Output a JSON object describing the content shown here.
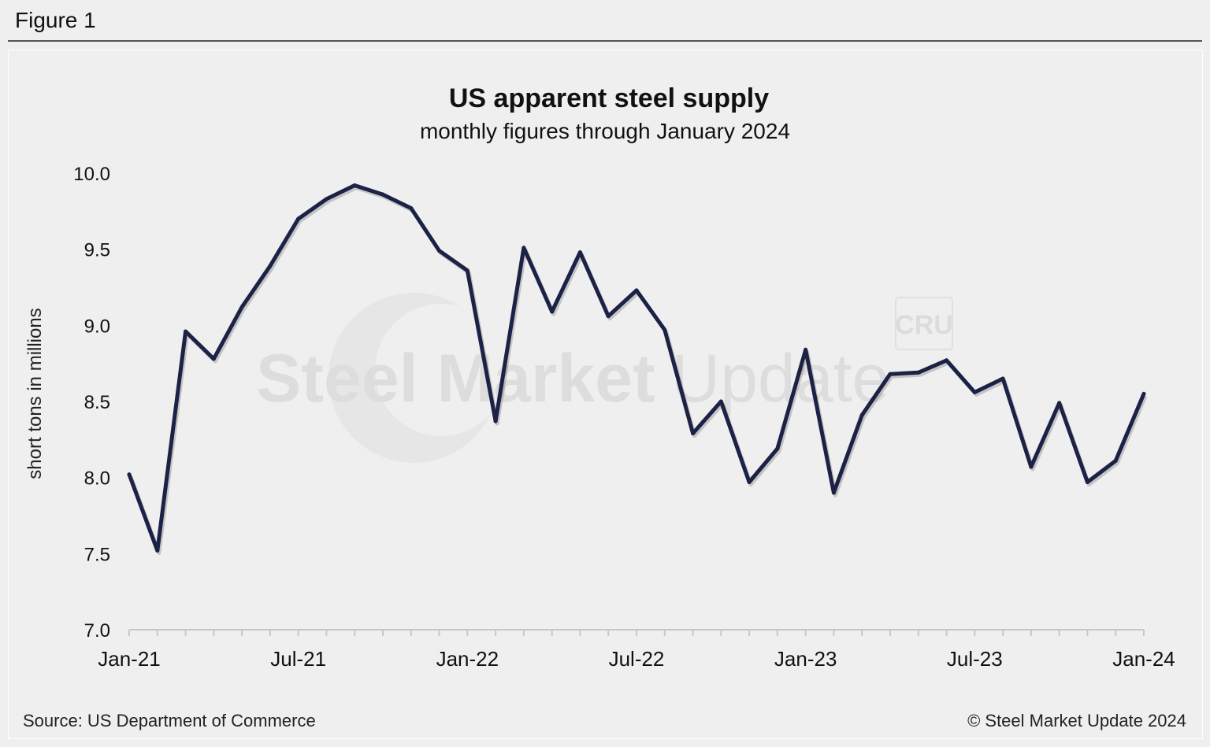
{
  "figure_label": "Figure 1",
  "source": "Source: US Department of Commerce",
  "copyright": "© Steel Market Update 2024",
  "watermark": {
    "main": "Steel Market",
    "secondary": "Update",
    "badge": "CRU"
  },
  "colors": {
    "line": "#1b2246",
    "background": "#efefef",
    "axis": "#c8c8c8",
    "text": "#111111"
  },
  "chart_data": {
    "type": "line",
    "title": "US apparent steel supply",
    "subtitle": "monthly figures through January 2024",
    "xlabel": "",
    "ylabel": "short tons in millions",
    "ylim": [
      7.0,
      10.0
    ],
    "yticks": [
      "7.0",
      "7.5",
      "8.0",
      "8.5",
      "9.0",
      "9.5",
      "10.0"
    ],
    "grid": false,
    "x": [
      "Jan-21",
      "Feb-21",
      "Mar-21",
      "Apr-21",
      "May-21",
      "Jun-21",
      "Jul-21",
      "Aug-21",
      "Sep-21",
      "Oct-21",
      "Nov-21",
      "Dec-21",
      "Jan-22",
      "Feb-22",
      "Mar-22",
      "Apr-22",
      "May-22",
      "Jun-22",
      "Jul-22",
      "Aug-22",
      "Sep-22",
      "Oct-22",
      "Nov-22",
      "Dec-22",
      "Jan-23",
      "Feb-23",
      "Mar-23",
      "Apr-23",
      "May-23",
      "Jun-23",
      "Jul-23",
      "Aug-23",
      "Sep-23",
      "Oct-23",
      "Nov-23",
      "Dec-23",
      "Jan-24"
    ],
    "xtick_labels": [
      {
        "index": 0,
        "label": "Jan-21"
      },
      {
        "index": 6,
        "label": "Jul-21"
      },
      {
        "index": 12,
        "label": "Jan-22"
      },
      {
        "index": 18,
        "label": "Jul-22"
      },
      {
        "index": 24,
        "label": "Jan-23"
      },
      {
        "index": 30,
        "label": "Jul-23"
      },
      {
        "index": 36,
        "label": "Jan-24"
      }
    ],
    "series": [
      {
        "name": "US apparent steel supply",
        "values": [
          8.02,
          7.52,
          8.96,
          8.78,
          9.12,
          9.39,
          9.7,
          9.83,
          9.92,
          9.86,
          9.77,
          9.49,
          9.36,
          8.37,
          9.51,
          9.09,
          9.48,
          9.06,
          9.23,
          8.97,
          8.29,
          8.5,
          7.97,
          8.19,
          8.84,
          7.9,
          8.41,
          8.68,
          8.69,
          8.77,
          8.56,
          8.65,
          8.07,
          8.49,
          7.97,
          8.11,
          8.55
        ]
      }
    ]
  }
}
